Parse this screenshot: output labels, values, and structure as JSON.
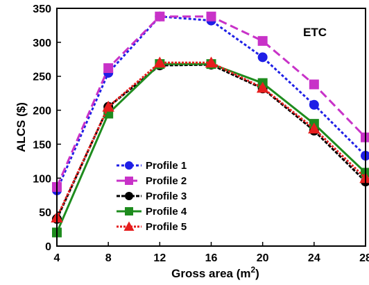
{
  "chart_data": {
    "type": "line",
    "annotation": "ETC",
    "xlabel": "Gross area (m",
    "xlabel_sup": "2",
    "xlabel_close": ")",
    "ylabel": "ALCS ($)",
    "xlim": [
      4,
      28
    ],
    "ylim": [
      0,
      350
    ],
    "xticks": [
      4,
      8,
      12,
      16,
      20,
      24,
      28
    ],
    "yticks": [
      0,
      50,
      100,
      150,
      200,
      250,
      300,
      350
    ],
    "grid": false,
    "legend_position": "lower-left",
    "x": [
      4,
      8,
      12,
      16,
      20,
      24,
      28
    ],
    "series": [
      {
        "name": "Profile 1",
        "color": "#1f1fe6",
        "marker": "circle",
        "dash": "4,3",
        "values": [
          82,
          255,
          338,
          332,
          278,
          208,
          133
        ]
      },
      {
        "name": "Profile 2",
        "color": "#c832c8",
        "marker": "square",
        "dash": "12,6",
        "values": [
          87,
          262,
          338,
          338,
          302,
          238,
          160
        ]
      },
      {
        "name": "Profile 3",
        "color": "#000000",
        "marker": "circle",
        "dash": "5,2",
        "values": [
          40,
          205,
          266,
          267,
          232,
          170,
          95
        ]
      },
      {
        "name": "Profile 4",
        "color": "#1e8c1e",
        "marker": "square",
        "dash": "",
        "values": [
          20,
          195,
          268,
          268,
          240,
          180,
          108
        ]
      },
      {
        "name": "Profile 5",
        "color": "#e61e1e",
        "marker": "triangle",
        "dash": "3,2",
        "values": [
          42,
          205,
          270,
          270,
          233,
          173,
          100
        ]
      }
    ]
  }
}
